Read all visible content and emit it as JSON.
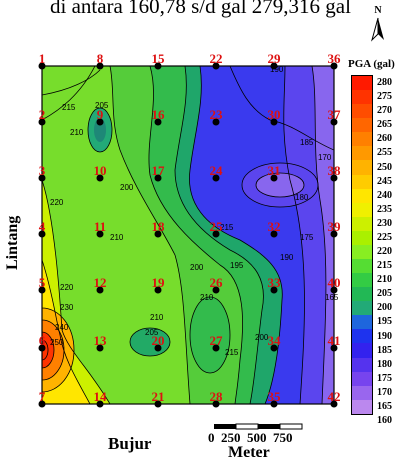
{
  "header_text": "di antara 160,78 s/d gal 279,316 gal",
  "north_letter": "N",
  "legend": {
    "title": "PGA (gal)",
    "values": [
      "280",
      "275",
      "270",
      "265",
      "260",
      "255",
      "250",
      "245",
      "240",
      "235",
      "230",
      "225",
      "220",
      "215",
      "210",
      "205",
      "200",
      "195",
      "190",
      "185",
      "180",
      "175",
      "170",
      "165",
      "160"
    ],
    "colors": [
      "#ff1a00",
      "#ff3300",
      "#ff4d00",
      "#ff6600",
      "#ff8000",
      "#ff9900",
      "#ffb300",
      "#ffcc00",
      "#ffe600",
      "#f0f000",
      "#ccf000",
      "#aaf000",
      "#88ee22",
      "#55dd33",
      "#33cc44",
      "#22b855",
      "#22aa77",
      "#1e66dd",
      "#1e33ee",
      "#3322ee",
      "#5533ee",
      "#7744ee",
      "#9966ee",
      "#bb88ee"
    ]
  },
  "axis": {
    "ylabel": "Lintang",
    "xlabel": "Bujur"
  },
  "scalebar": {
    "ticks": [
      "0",
      "250",
      "500",
      "750"
    ],
    "unit": "Meter"
  },
  "stations": [
    {
      "id": "1"
    },
    {
      "id": "8"
    },
    {
      "id": "15"
    },
    {
      "id": "22"
    },
    {
      "id": "29"
    },
    {
      "id": "36"
    },
    {
      "id": "2"
    },
    {
      "id": "9"
    },
    {
      "id": "16"
    },
    {
      "id": "23"
    },
    {
      "id": "30"
    },
    {
      "id": "37"
    },
    {
      "id": "3"
    },
    {
      "id": "10"
    },
    {
      "id": "17"
    },
    {
      "id": "24"
    },
    {
      "id": "31"
    },
    {
      "id": "38"
    },
    {
      "id": "4"
    },
    {
      "id": "11"
    },
    {
      "id": "18"
    },
    {
      "id": "25"
    },
    {
      "id": "32"
    },
    {
      "id": "39"
    },
    {
      "id": "5"
    },
    {
      "id": "12"
    },
    {
      "id": "19"
    },
    {
      "id": "26"
    },
    {
      "id": "33"
    },
    {
      "id": "40"
    },
    {
      "id": "6"
    },
    {
      "id": "13"
    },
    {
      "id": "20"
    },
    {
      "id": "27"
    },
    {
      "id": "34"
    },
    {
      "id": "41"
    },
    {
      "id": "7"
    },
    {
      "id": "14"
    },
    {
      "id": "21"
    },
    {
      "id": "28"
    },
    {
      "id": "35"
    },
    {
      "id": "42"
    }
  ],
  "contour_labels": [
    "215",
    "210",
    "205",
    "220",
    "200",
    "210",
    "190",
    "185",
    "180",
    "175",
    "170",
    "195",
    "165",
    "200",
    "210",
    "215",
    "220",
    "230",
    "240",
    "250",
    "210",
    "205",
    "215",
    "200",
    "190"
  ]
}
